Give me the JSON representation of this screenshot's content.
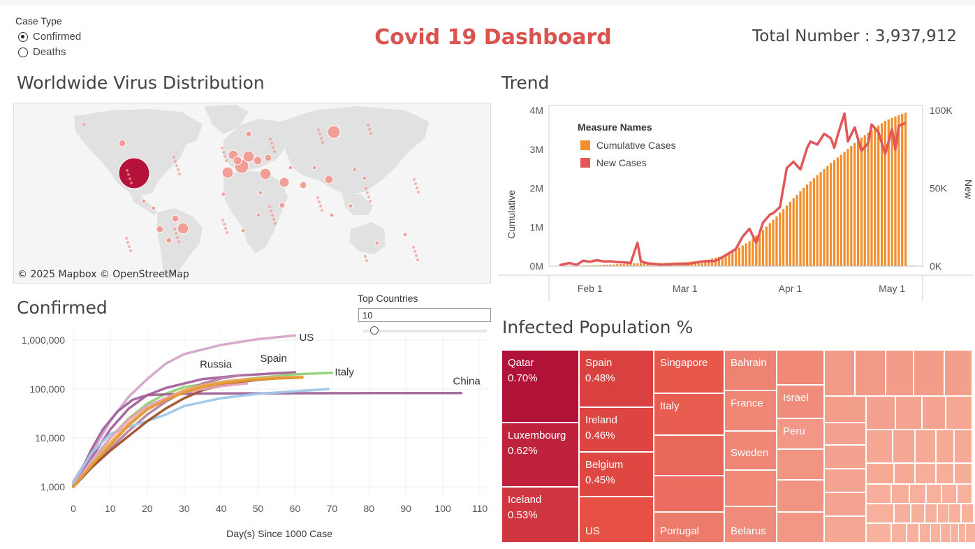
{
  "header": {
    "title": "Covid 19 Dashboard",
    "total_label": "Total Number : 3,937,912"
  },
  "case_type": {
    "label": "Case Type",
    "options": [
      {
        "label": "Confirmed",
        "selected": true
      },
      {
        "label": "Deaths",
        "selected": false
      }
    ]
  },
  "map": {
    "title": "Worldwide Virus Distribution",
    "attribution": "© 2025 Mapbox  © OpenStreetMap"
  },
  "top_countries": {
    "label": "Top Countries",
    "value": "10"
  },
  "colors": {
    "accent_red": "#d9534f",
    "cumulative": "#f28e2b",
    "new_cases": "#e15759",
    "dark_red": "#b5123b"
  },
  "chart_data": [
    {
      "type": "line",
      "title": "Trend",
      "ylabel": "Cumulative",
      "y2label": "New",
      "legend_title": "Measure Names",
      "legend": [
        "Cumulative Cases",
        "New Cases"
      ],
      "legend_placement": "top-left",
      "x_ticks": [
        "Feb 1",
        "Mar 1",
        "Apr 1",
        "May 1"
      ],
      "y_ticks": [
        "4M",
        "3M",
        "2M",
        "1M",
        "0M"
      ],
      "y2_ticks": [
        "100K",
        "50K",
        "0K"
      ],
      "ylim": [
        0,
        4000000
      ],
      "y2lim": [
        0,
        100000
      ],
      "series": [
        {
          "name": "Cumulative Cases",
          "kind": "bar",
          "x_day": [
            0,
            8,
            16,
            22,
            28,
            32,
            36,
            40,
            44,
            48,
            52,
            56,
            60,
            64,
            68,
            72,
            76,
            80,
            84,
            88,
            92,
            96,
            100,
            102
          ],
          "values": [
            580,
            14000,
            43000,
            71000,
            80000,
            88000,
            100000,
            125000,
            170000,
            260000,
            420000,
            640000,
            930000,
            1280000,
            1650000,
            2010000,
            2340000,
            2650000,
            2930000,
            3240000,
            3490000,
            3730000,
            3880000,
            3937912
          ]
        },
        {
          "name": "New Cases",
          "kind": "line",
          "x_day": [
            0,
            3,
            5,
            7,
            9,
            11,
            13,
            15,
            17,
            19,
            21,
            23,
            24,
            26,
            28,
            30,
            34,
            38,
            42,
            46,
            49,
            52,
            54,
            56,
            58,
            60,
            62,
            63,
            65,
            67,
            69,
            71,
            73,
            74,
            76,
            78,
            80,
            81,
            82,
            84,
            85,
            87,
            89,
            91,
            92,
            94,
            96,
            98,
            99,
            100,
            102
          ],
          "values": [
            580,
            2000,
            800,
            3500,
            2800,
            3800,
            3000,
            3100,
            2600,
            2400,
            2000,
            15000,
            3000,
            1800,
            1500,
            800,
            1500,
            1500,
            3000,
            3300,
            7000,
            11000,
            19000,
            24000,
            15000,
            28000,
            33000,
            34000,
            38000,
            63000,
            67000,
            62000,
            76000,
            80000,
            78000,
            85000,
            82000,
            76000,
            84000,
            98000,
            80000,
            89000,
            74000,
            79000,
            91000,
            86000,
            72000,
            88000,
            75000,
            90000,
            92000
          ]
        }
      ]
    },
    {
      "type": "line",
      "title": "Confirmed",
      "xlabel": "Day(s) Since 1000 Case",
      "x_ticks": [
        "0",
        "10",
        "20",
        "30",
        "40",
        "50",
        "60",
        "70",
        "80",
        "90",
        "100",
        "110"
      ],
      "y_ticks": [
        "1,000,000",
        "100,000",
        "10,000",
        "1,000"
      ],
      "xlim": [
        0,
        110
      ],
      "ylim": [
        1000,
        1000000
      ],
      "yscale": "log",
      "series": [
        {
          "name": "US",
          "color": "#d4a5c9",
          "x": [
            0,
            5,
            10,
            15,
            20,
            25,
            30,
            40,
            50,
            60
          ],
          "values": [
            1300,
            5000,
            22000,
            70000,
            160000,
            330000,
            520000,
            800000,
            1050000,
            1250000
          ]
        },
        {
          "name": "Spain",
          "color": "#a65f9a",
          "x": [
            0,
            5,
            10,
            15,
            20,
            25,
            30,
            35,
            45,
            55,
            60
          ],
          "values": [
            1100,
            4000,
            15000,
            40000,
            75000,
            105000,
            130000,
            160000,
            190000,
            210000,
            220000
          ]
        },
        {
          "name": "Italy",
          "color": "#8fd175",
          "x": [
            0,
            5,
            10,
            15,
            20,
            25,
            30,
            40,
            50,
            60,
            70
          ],
          "values": [
            1100,
            3000,
            10000,
            25000,
            50000,
            80000,
            110000,
            140000,
            170000,
            200000,
            215000
          ]
        },
        {
          "name": "China",
          "color": "#a0649b",
          "x": [
            0,
            5,
            8,
            12,
            16,
            20,
            25,
            30,
            40,
            60,
            80,
            105
          ],
          "values": [
            1000,
            6000,
            15000,
            35000,
            60000,
            75000,
            78000,
            80000,
            81500,
            82000,
            82500,
            83000
          ]
        },
        {
          "name": "Russia",
          "color": "#b57fa8",
          "x": [
            0,
            5,
            10,
            15,
            20,
            25,
            30,
            35,
            40,
            45
          ],
          "values": [
            1100,
            2500,
            6000,
            14000,
            30000,
            55000,
            90000,
            130000,
            165000,
            190000
          ]
        },
        {
          "name": "",
          "color": "#9ec8e8",
          "x": [
            0,
            5,
            10,
            15,
            20,
            25,
            30,
            40,
            50,
            60,
            69
          ],
          "values": [
            1200,
            5000,
            12000,
            17000,
            22000,
            30000,
            45000,
            65000,
            80000,
            90000,
            100000
          ]
        },
        {
          "name": "",
          "color": "#a0522d",
          "x": [
            0,
            5,
            10,
            15,
            20,
            25,
            30,
            35,
            40,
            45,
            50,
            55,
            60
          ],
          "values": [
            1000,
            2500,
            5500,
            11000,
            22000,
            40000,
            65000,
            95000,
            120000,
            140000,
            155000,
            165000,
            170000
          ]
        },
        {
          "name": "",
          "color": "#f0a868",
          "x": [
            0,
            5,
            10,
            15,
            20,
            25,
            30,
            35,
            40,
            45,
            50,
            55,
            62
          ],
          "values": [
            1000,
            2800,
            8000,
            20000,
            40000,
            65000,
            95000,
            120000,
            140000,
            155000,
            165000,
            172000,
            178000
          ]
        },
        {
          "name": "",
          "color": "#e8a0b8",
          "x": [
            0,
            5,
            10,
            15,
            20,
            25,
            30,
            35,
            40,
            47
          ],
          "values": [
            1000,
            3500,
            10000,
            24000,
            45000,
            65000,
            85000,
            100000,
            115000,
            130000
          ]
        },
        {
          "name": "",
          "color": "#e39a2d",
          "x": [
            0,
            5,
            10,
            15,
            20,
            25,
            30,
            35,
            40,
            45,
            50,
            55,
            62
          ],
          "values": [
            1000,
            2800,
            7000,
            18000,
            38000,
            60000,
            85000,
            110000,
            130000,
            145000,
            157000,
            165000,
            172000
          ]
        }
      ]
    },
    {
      "type": "treemap",
      "title": "Infected Population %",
      "items": [
        {
          "name": "Qatar",
          "value_label": "0.70%",
          "pct": 0.7
        },
        {
          "name": "Luxembourg",
          "value_label": "0.62%",
          "pct": 0.62
        },
        {
          "name": "Iceland",
          "value_label": "0.53%",
          "pct": 0.53
        },
        {
          "name": "Spain",
          "value_label": "0.48%",
          "pct": 0.48
        },
        {
          "name": "Ireland",
          "value_label": "0.46%",
          "pct": 0.46
        },
        {
          "name": "Belgium",
          "value_label": "0.45%",
          "pct": 0.45
        },
        {
          "name": "US",
          "value_label": "",
          "pct": 0.41
        },
        {
          "name": "Singapore",
          "value_label": "",
          "pct": 0.38
        },
        {
          "name": "Italy",
          "value_label": "",
          "pct": 0.36
        },
        {
          "name": "Portugal",
          "value_label": "",
          "pct": 0.25
        },
        {
          "name": "Bahrain",
          "value_label": "",
          "pct": 0.22
        },
        {
          "name": "France",
          "value_label": "",
          "pct": 0.21
        },
        {
          "name": "Sweden",
          "value_label": "",
          "pct": 0.21
        },
        {
          "name": "Belarus",
          "value_label": "",
          "pct": 0.19
        },
        {
          "name": "Israel",
          "value_label": "",
          "pct": 0.19
        },
        {
          "name": "Peru",
          "value_label": "",
          "pct": 0.15
        }
      ]
    }
  ]
}
